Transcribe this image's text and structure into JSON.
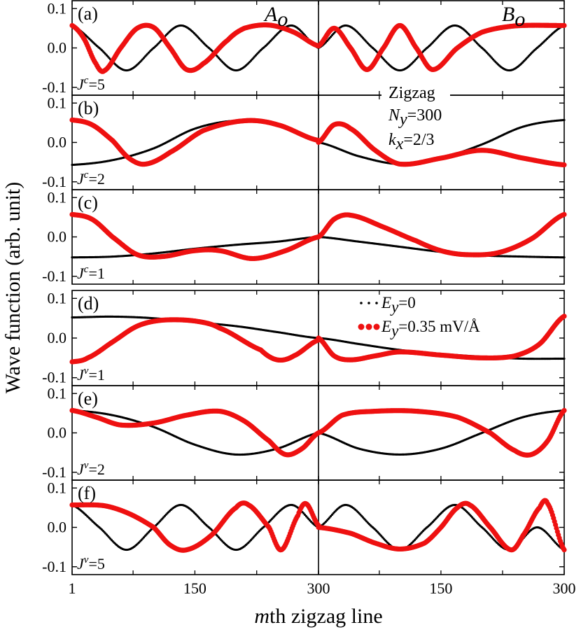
{
  "chart_data": {
    "type": "line",
    "xlabel_prefix": "m",
    "xlabel_rest": "th zigzag line",
    "ylabel": "Wave function (arb. unit)",
    "x_ticks": [
      "1",
      "150",
      "300",
      "150",
      "300"
    ],
    "y_ticks": [
      "0.1",
      "0.0",
      "-0.1"
    ],
    "ylim": [
      -0.12,
      0.12
    ],
    "sublattice_labels": {
      "A": "A",
      "A_sub": "o",
      "B": "B",
      "B_sub": "o"
    },
    "info": {
      "lattice": "Zigzag",
      "ny_main": "N",
      "ny_sub": "y",
      "ny_value": "=300",
      "kx_main": "k",
      "kx_sub": "x",
      "kx_value": "=2/3"
    },
    "legend": {
      "entries": [
        {
          "main": "E",
          "sub": "y",
          "value": "=0",
          "color": "#000000"
        },
        {
          "main": "E",
          "sub": "y",
          "value": "=0.35 mV/Å",
          "color": "#ee1111"
        }
      ]
    },
    "series_colors": {
      "zero_field": "#000000",
      "field": "#ee1111"
    },
    "panels": [
      {
        "label": "(a)",
        "j_main": "J",
        "j_sup": "c",
        "j_value": "=5",
        "black": {
          "A": [
            [
              1,
              0.057
            ],
            [
              34,
              0
            ],
            [
              67,
              -0.057
            ],
            [
              100,
              0
            ],
            [
              133,
              0.057
            ],
            [
              167,
              0
            ],
            [
              200,
              -0.057
            ],
            [
              233,
              0
            ],
            [
              267,
              0.057
            ],
            [
              300,
              0
            ]
          ],
          "B": [
            [
              1,
              0
            ],
            [
              34,
              0.057
            ],
            [
              67,
              0
            ],
            [
              100,
              -0.057
            ],
            [
              133,
              0
            ],
            [
              167,
              0.057
            ],
            [
              200,
              0
            ],
            [
              233,
              -0.057
            ],
            [
              267,
              0
            ],
            [
              300,
              0.057
            ]
          ]
        },
        "red": {
          "A": [
            [
              1,
              0.057
            ],
            [
              15,
              0.025
            ],
            [
              30,
              -0.04
            ],
            [
              40,
              -0.058
            ],
            [
              60,
              0
            ],
            [
              80,
              0.05
            ],
            [
              100,
              0.052
            ],
            [
              120,
              0
            ],
            [
              140,
              -0.055
            ],
            [
              160,
              -0.04
            ],
            [
              190,
              0.02
            ],
            [
              210,
              0.05
            ],
            [
              240,
              0.058
            ],
            [
              270,
              0.04
            ],
            [
              300,
              0.005
            ]
          ],
          "B": [
            [
              1,
              0.005
            ],
            [
              20,
              0.05
            ],
            [
              40,
              0
            ],
            [
              60,
              -0.055
            ],
            [
              80,
              0
            ],
            [
              100,
              0.057
            ],
            [
              120,
              0
            ],
            [
              140,
              -0.055
            ],
            [
              170,
              0
            ],
            [
              200,
              0.04
            ],
            [
              240,
              0.056
            ],
            [
              300,
              0.057
            ]
          ]
        }
      },
      {
        "label": "(b)",
        "j_main": "J",
        "j_sup": "c",
        "j_value": "=2",
        "black": {
          "A": [
            [
              1,
              -0.057
            ],
            [
              50,
              -0.045
            ],
            [
              100,
              -0.015
            ],
            [
              150,
              0.035
            ],
            [
              200,
              0.055
            ],
            [
              250,
              0.043
            ],
            [
              300,
              0.002
            ]
          ],
          "B": [
            [
              1,
              0
            ],
            [
              50,
              -0.035
            ],
            [
              100,
              -0.055
            ],
            [
              150,
              -0.04
            ],
            [
              200,
              -0.005
            ],
            [
              250,
              0.04
            ],
            [
              300,
              0.057
            ]
          ]
        },
        "red": {
          "A": [
            [
              1,
              0.057
            ],
            [
              25,
              0.045
            ],
            [
              50,
              0.005
            ],
            [
              70,
              -0.04
            ],
            [
              90,
              -0.055
            ],
            [
              120,
              -0.025
            ],
            [
              160,
              0.03
            ],
            [
              210,
              0.055
            ],
            [
              250,
              0.045
            ],
            [
              300,
              0.005
            ]
          ],
          "B": [
            [
              1,
              0
            ],
            [
              20,
              0.045
            ],
            [
              40,
              0.035
            ],
            [
              70,
              -0.02
            ],
            [
              100,
              -0.055
            ],
            [
              150,
              -0.04
            ],
            [
              200,
              -0.02
            ],
            [
              250,
              -0.04
            ],
            [
              300,
              -0.057
            ]
          ]
        }
      },
      {
        "label": "(c)",
        "j_main": "J",
        "j_sup": "c",
        "j_value": "=1",
        "black": {
          "A": [
            [
              1,
              -0.052
            ],
            [
              50,
              -0.05
            ],
            [
              100,
              -0.042
            ],
            [
              150,
              -0.03
            ],
            [
              200,
              -0.02
            ],
            [
              250,
              -0.012
            ],
            [
              300,
              0
            ]
          ],
          "B": [
            [
              1,
              0
            ],
            [
              50,
              -0.012
            ],
            [
              100,
              -0.025
            ],
            [
              150,
              -0.038
            ],
            [
              200,
              -0.047
            ],
            [
              250,
              -0.05
            ],
            [
              300,
              -0.052
            ]
          ]
        },
        "red": {
          "A": [
            [
              1,
              0.057
            ],
            [
              25,
              0.045
            ],
            [
              50,
              0
            ],
            [
              80,
              -0.045
            ],
            [
              110,
              -0.05
            ],
            [
              150,
              -0.035
            ],
            [
              180,
              -0.035
            ],
            [
              220,
              -0.055
            ],
            [
              260,
              -0.035
            ],
            [
              300,
              0
            ]
          ],
          "B": [
            [
              1,
              0
            ],
            [
              20,
              0.045
            ],
            [
              40,
              0.055
            ],
            [
              80,
              0.025
            ],
            [
              120,
              -0.01
            ],
            [
              150,
              -0.035
            ],
            [
              180,
              -0.045
            ],
            [
              220,
              -0.04
            ],
            [
              260,
              -0.005
            ],
            [
              300,
              0.057
            ]
          ]
        }
      },
      {
        "label": "(d)",
        "j_main": "J",
        "j_sup": "v",
        "j_value": "=1",
        "black": {
          "A": [
            [
              1,
              0.052
            ],
            [
              50,
              0.054
            ],
            [
              100,
              0.05
            ],
            [
              150,
              0.04
            ],
            [
              200,
              0.03
            ],
            [
              250,
              0.015
            ],
            [
              300,
              0
            ]
          ],
          "B": [
            [
              1,
              0
            ],
            [
              50,
              -0.015
            ],
            [
              100,
              -0.03
            ],
            [
              150,
              -0.04
            ],
            [
              200,
              -0.047
            ],
            [
              250,
              -0.052
            ],
            [
              300,
              -0.052
            ]
          ]
        },
        "red": {
          "A": [
            [
              1,
              -0.06
            ],
            [
              20,
              -0.05
            ],
            [
              50,
              -0.01
            ],
            [
              80,
              0.03
            ],
            [
              110,
              0.045
            ],
            [
              150,
              0.043
            ],
            [
              180,
              0.025
            ],
            [
              230,
              -0.03
            ],
            [
              250,
              -0.055
            ],
            [
              270,
              -0.045
            ],
            [
              300,
              -0.005
            ]
          ],
          "B": [
            [
              1,
              0
            ],
            [
              20,
              -0.045
            ],
            [
              40,
              -0.055
            ],
            [
              70,
              -0.045
            ],
            [
              100,
              -0.035
            ],
            [
              150,
              -0.043
            ],
            [
              200,
              -0.05
            ],
            [
              240,
              -0.045
            ],
            [
              270,
              -0.015
            ],
            [
              300,
              0.055
            ]
          ]
        }
      },
      {
        "label": "(e)",
        "j_main": "J",
        "j_sup": "v",
        "j_value": "=2",
        "black": {
          "A": [
            [
              1,
              0.057
            ],
            [
              50,
              0.045
            ],
            [
              100,
              0.015
            ],
            [
              150,
              -0.03
            ],
            [
              200,
              -0.055
            ],
            [
              250,
              -0.04
            ],
            [
              300,
              0
            ]
          ],
          "B": [
            [
              1,
              0
            ],
            [
              50,
              -0.04
            ],
            [
              100,
              -0.055
            ],
            [
              150,
              -0.04
            ],
            [
              200,
              0
            ],
            [
              250,
              0.04
            ],
            [
              300,
              0.057
            ]
          ]
        },
        "red": {
          "A": [
            [
              1,
              0.057
            ],
            [
              30,
              0.04
            ],
            [
              60,
              0.02
            ],
            [
              100,
              0.025
            ],
            [
              140,
              0.045
            ],
            [
              180,
              0.055
            ],
            [
              210,
              0.03
            ],
            [
              240,
              -0.02
            ],
            [
              260,
              -0.055
            ],
            [
              280,
              -0.04
            ],
            [
              300,
              0
            ]
          ],
          "B": [
            [
              1,
              0
            ],
            [
              30,
              0.045
            ],
            [
              70,
              0.055
            ],
            [
              120,
              0.055
            ],
            [
              170,
              0.04
            ],
            [
              210,
              0
            ],
            [
              240,
              -0.045
            ],
            [
              260,
              -0.055
            ],
            [
              280,
              -0.02
            ],
            [
              300,
              0.057
            ]
          ]
        }
      },
      {
        "label": "(f)",
        "j_main": "J",
        "j_sup": "v",
        "j_value": "=5",
        "black": {
          "A": [
            [
              1,
              0.057
            ],
            [
              34,
              0
            ],
            [
              67,
              -0.057
            ],
            [
              100,
              0
            ],
            [
              133,
              0.057
            ],
            [
              167,
              0
            ],
            [
              200,
              -0.057
            ],
            [
              233,
              0
            ],
            [
              267,
              0.057
            ],
            [
              300,
              0
            ]
          ],
          "B": [
            [
              1,
              0
            ],
            [
              34,
              0.057
            ],
            [
              67,
              0
            ],
            [
              100,
              -0.057
            ],
            [
              133,
              0
            ],
            [
              167,
              0.057
            ],
            [
              200,
              0
            ],
            [
              233,
              -0.057
            ],
            [
              267,
              0
            ],
            [
              300,
              -0.057
            ]
          ]
        },
        "red": {
          "A": [
            [
              1,
              0.057
            ],
            [
              40,
              0.055
            ],
            [
              70,
              0.035
            ],
            [
              100,
              0
            ],
            [
              120,
              -0.045
            ],
            [
              140,
              -0.057
            ],
            [
              170,
              -0.02
            ],
            [
              200,
              0.05
            ],
            [
              215,
              0.057
            ],
            [
              240,
              0
            ],
            [
              255,
              -0.057
            ],
            [
              275,
              0.03
            ],
            [
              285,
              0.06
            ],
            [
              300,
              0.005
            ]
          ],
          "B": [
            [
              1,
              0
            ],
            [
              40,
              -0.015
            ],
            [
              70,
              -0.04
            ],
            [
              100,
              -0.055
            ],
            [
              130,
              -0.04
            ],
            [
              150,
              0
            ],
            [
              170,
              0.05
            ],
            [
              185,
              0.057
            ],
            [
              210,
              0
            ],
            [
              235,
              -0.057
            ],
            [
              250,
              -0.02
            ],
            [
              270,
              0.05
            ],
            [
              280,
              0.06
            ],
            [
              300,
              -0.057
            ]
          ]
        }
      }
    ]
  }
}
